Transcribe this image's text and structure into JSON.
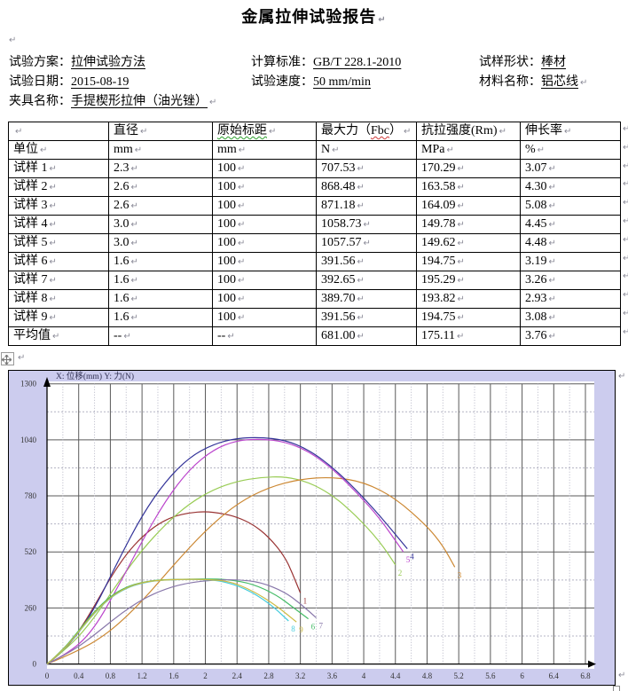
{
  "title": "金属拉伸试验报告",
  "marks": {
    "pilcrow": "↵"
  },
  "info": {
    "fields": [
      {
        "label": "试验方案：",
        "value": "拉伸试验方法"
      },
      {
        "label": "计算标准：",
        "value": "GB/T 228.1-2010"
      },
      {
        "label": "试样形状：",
        "value": "棒材"
      },
      {
        "label": "试验日期：",
        "value": "2015-08-19"
      },
      {
        "label": "试验速度：",
        "value": "50 mm/min"
      },
      {
        "label": "材料名称：",
        "value": "铝芯线"
      },
      {
        "label": "夹具名称：",
        "value": "手提楔形拉伸（油光锉）"
      }
    ]
  },
  "table": {
    "headers": [
      {
        "text": ""
      },
      {
        "text": "直径"
      },
      {
        "text": "原始标距",
        "squiggle": "green"
      },
      {
        "text": "最大力（Fbc）",
        "squiggle": "red",
        "squiggle_part": "Fbc"
      },
      {
        "text": "抗拉强度(Rm)"
      },
      {
        "text": "伸长率"
      }
    ],
    "units_row": [
      "单位",
      "mm",
      "mm",
      "N",
      "MPa",
      "%"
    ],
    "rows": [
      [
        "试样 1",
        "2.3",
        "100",
        "707.53",
        "170.29",
        "3.07"
      ],
      [
        "试样 2",
        "2.6",
        "100",
        "868.48",
        "163.58",
        "4.30"
      ],
      [
        "试样 3",
        "2.6",
        "100",
        "871.18",
        "164.09",
        "5.08"
      ],
      [
        "试样 4",
        "3.0",
        "100",
        "1058.73",
        "149.78",
        "4.45"
      ],
      [
        "试样 5",
        "3.0",
        "100",
        "1057.57",
        "149.62",
        "4.48"
      ],
      [
        "试样 6",
        "1.6",
        "100",
        "391.56",
        "194.75",
        "3.19"
      ],
      [
        "试样 7",
        "1.6",
        "100",
        "392.65",
        "195.29",
        "3.26"
      ],
      [
        "试样 8",
        "1.6",
        "100",
        "389.70",
        "193.82",
        "2.93"
      ],
      [
        "试样 9",
        "1.6",
        "100",
        "391.56",
        "194.75",
        "3.08"
      ],
      [
        "平均值",
        "--",
        "--",
        "681.00",
        "175.11",
        "3.76"
      ]
    ]
  },
  "chart_data": {
    "type": "line",
    "title": "X: 位移(mm)   Y: 力(N)",
    "xlabel": "位移(mm)",
    "ylabel": "力(N)",
    "xlim": [
      0,
      6.8
    ],
    "ylim": [
      0,
      1300
    ],
    "x_tick_labels": [
      "0",
      "0.4",
      "0.8",
      "1.2",
      "1.6",
      "2",
      "2.4",
      "2.8",
      "3.2",
      "3.6",
      "4",
      "4.4",
      "4.8",
      "5.2",
      "5.6",
      "6",
      "6.4",
      "6.8"
    ],
    "x_tick_values": [
      0,
      0.4,
      0.8,
      1.2,
      1.6,
      2,
      2.4,
      2.8,
      3.2,
      3.6,
      4,
      4.4,
      4.8,
      5.2,
      5.6,
      6,
      6.4,
      6.8
    ],
    "y_tick_labels": [
      "0",
      "260",
      "520",
      "780",
      "1040",
      "1300"
    ],
    "y_tick_values": [
      0,
      260,
      520,
      780,
      1040,
      1300
    ],
    "x_minor_step": 0.2,
    "y_minor_step": 130,
    "grid": "on",
    "colors": {
      "background": "#ccccee",
      "plot_background": "#ffffff",
      "major_grid": "#5a5a5a",
      "minor_grid": "#b4b4c4",
      "axis": "#000000",
      "tick_text": "#333333",
      "title_text": "#333355"
    },
    "series": [
      {
        "name": "1",
        "color": "#993333",
        "points": [
          [
            0,
            0
          ],
          [
            0.2,
            55
          ],
          [
            0.4,
            150
          ],
          [
            0.6,
            270
          ],
          [
            0.8,
            400
          ],
          [
            1.0,
            510
          ],
          [
            1.2,
            590
          ],
          [
            1.4,
            650
          ],
          [
            1.6,
            685
          ],
          [
            1.8,
            702
          ],
          [
            2.0,
            708
          ],
          [
            2.2,
            700
          ],
          [
            2.4,
            682
          ],
          [
            2.6,
            648
          ],
          [
            2.8,
            590
          ],
          [
            3.0,
            500
          ],
          [
            3.1,
            420
          ],
          [
            3.2,
            330
          ]
        ]
      },
      {
        "name": "2",
        "color": "#99cc55",
        "points": [
          [
            0,
            0
          ],
          [
            0.3,
            85
          ],
          [
            0.6,
            215
          ],
          [
            0.9,
            380
          ],
          [
            1.2,
            530
          ],
          [
            1.5,
            650
          ],
          [
            1.8,
            745
          ],
          [
            2.1,
            810
          ],
          [
            2.4,
            848
          ],
          [
            2.7,
            866
          ],
          [
            3.0,
            870
          ],
          [
            3.3,
            845
          ],
          [
            3.6,
            785
          ],
          [
            3.9,
            690
          ],
          [
            4.2,
            570
          ],
          [
            4.4,
            460
          ]
        ]
      },
      {
        "name": "3",
        "color": "#cc8833",
        "points": [
          [
            0,
            0
          ],
          [
            0.4,
            60
          ],
          [
            0.8,
            150
          ],
          [
            1.2,
            290
          ],
          [
            1.6,
            460
          ],
          [
            2.0,
            620
          ],
          [
            2.4,
            745
          ],
          [
            2.8,
            820
          ],
          [
            3.2,
            858
          ],
          [
            3.6,
            868
          ],
          [
            4.0,
            845
          ],
          [
            4.4,
            770
          ],
          [
            4.8,
            640
          ],
          [
            5.0,
            550
          ],
          [
            5.15,
            450
          ]
        ]
      },
      {
        "name": "4",
        "color": "#333399",
        "points": [
          [
            0,
            0
          ],
          [
            0.3,
            90
          ],
          [
            0.6,
            255
          ],
          [
            0.9,
            480
          ],
          [
            1.2,
            690
          ],
          [
            1.5,
            850
          ],
          [
            1.8,
            960
          ],
          [
            2.1,
            1020
          ],
          [
            2.4,
            1048
          ],
          [
            2.7,
            1052
          ],
          [
            3.0,
            1040
          ],
          [
            3.3,
            995
          ],
          [
            3.6,
            915
          ],
          [
            3.9,
            810
          ],
          [
            4.2,
            690
          ],
          [
            4.55,
            535
          ]
        ]
      },
      {
        "name": "5",
        "color": "#bb44cc",
        "points": [
          [
            0,
            0
          ],
          [
            0.3,
            55
          ],
          [
            0.6,
            165
          ],
          [
            0.9,
            360
          ],
          [
            1.2,
            570
          ],
          [
            1.5,
            760
          ],
          [
            1.8,
            905
          ],
          [
            2.1,
            995
          ],
          [
            2.4,
            1038
          ],
          [
            2.7,
            1044
          ],
          [
            3.0,
            1032
          ],
          [
            3.3,
            988
          ],
          [
            3.6,
            908
          ],
          [
            3.9,
            800
          ],
          [
            4.2,
            678
          ],
          [
            4.5,
            520
          ]
        ]
      },
      {
        "name": "6",
        "color": "#44bb66",
        "points": [
          [
            0,
            0
          ],
          [
            0.2,
            65
          ],
          [
            0.4,
            155
          ],
          [
            0.6,
            245
          ],
          [
            0.8,
            315
          ],
          [
            1.0,
            358
          ],
          [
            1.2,
            380
          ],
          [
            1.4,
            390
          ],
          [
            1.7,
            394
          ],
          [
            2.0,
            395
          ],
          [
            2.3,
            392
          ],
          [
            2.6,
            372
          ],
          [
            2.9,
            320
          ],
          [
            3.1,
            265
          ],
          [
            3.3,
            210
          ]
        ]
      },
      {
        "name": "7",
        "color": "#8877aa",
        "points": [
          [
            0,
            0
          ],
          [
            0.3,
            55
          ],
          [
            0.6,
            135
          ],
          [
            0.9,
            225
          ],
          [
            1.2,
            300
          ],
          [
            1.5,
            350
          ],
          [
            1.8,
            378
          ],
          [
            2.1,
            390
          ],
          [
            2.4,
            392
          ],
          [
            2.7,
            380
          ],
          [
            3.0,
            335
          ],
          [
            3.2,
            280
          ],
          [
            3.4,
            215
          ]
        ]
      },
      {
        "name": "8",
        "color": "#44ccdd",
        "points": [
          [
            0,
            0
          ],
          [
            0.2,
            60
          ],
          [
            0.4,
            148
          ],
          [
            0.6,
            238
          ],
          [
            0.8,
            308
          ],
          [
            1.0,
            352
          ],
          [
            1.2,
            376
          ],
          [
            1.4,
            388
          ],
          [
            1.7,
            392
          ],
          [
            2.0,
            392
          ],
          [
            2.2,
            386
          ],
          [
            2.5,
            352
          ],
          [
            2.8,
            285
          ],
          [
            3.05,
            200
          ]
        ]
      },
      {
        "name": "9",
        "color": "#ccbb44",
        "points": [
          [
            0,
            0
          ],
          [
            0.2,
            62
          ],
          [
            0.4,
            150
          ],
          [
            0.6,
            240
          ],
          [
            0.8,
            310
          ],
          [
            1.0,
            354
          ],
          [
            1.2,
            378
          ],
          [
            1.4,
            389
          ],
          [
            1.7,
            393
          ],
          [
            2.0,
            393
          ],
          [
            2.3,
            385
          ],
          [
            2.6,
            340
          ],
          [
            2.9,
            270
          ],
          [
            3.15,
            195
          ]
        ]
      }
    ]
  }
}
